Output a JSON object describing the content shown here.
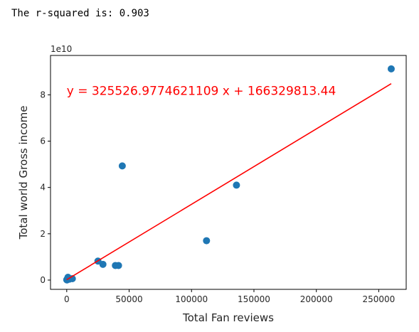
{
  "output": {
    "text": "The r-squared is: 0.903"
  },
  "chart_data": {
    "type": "scatter",
    "xlabel": "Total Fan reviews",
    "ylabel": "Total world Gross income",
    "y_offset_text": "1e10",
    "y_scale": 10000000000,
    "xlim": [
      -13000,
      272000
    ],
    "ylim": [
      -4000000000,
      97000000000
    ],
    "x_ticks": [
      0,
      50000,
      100000,
      150000,
      200000,
      250000
    ],
    "y_ticks": [
      0,
      2,
      4,
      6,
      8
    ],
    "grid": false,
    "points": [
      {
        "x": 0,
        "y": 150000000
      },
      {
        "x": 200,
        "y": 80000000
      },
      {
        "x": 500,
        "y": 500000000
      },
      {
        "x": 1000,
        "y": 1200000000
      },
      {
        "x": 2000,
        "y": 400000000
      },
      {
        "x": 4500,
        "y": 600000000
      },
      {
        "x": 25000,
        "y": 8200000000
      },
      {
        "x": 29000,
        "y": 6800000000
      },
      {
        "x": 39000,
        "y": 6300000000
      },
      {
        "x": 41500,
        "y": 6300000000
      },
      {
        "x": 44500,
        "y": 49300000000
      },
      {
        "x": 112000,
        "y": 17000000000
      },
      {
        "x": 136000,
        "y": 41000000000
      },
      {
        "x": 260000,
        "y": 91200000000
      }
    ],
    "regression": {
      "slope": 325526.9774621109,
      "intercept": 166329813.44,
      "x_from": 0,
      "x_to": 260000,
      "equation_text": "y = 325526.9774621109 x + 166329813.44",
      "equation_anchor_x": 0,
      "equation_anchor_y": 80000000000
    },
    "colors": {
      "points": "#1f77b4",
      "line": "#ff0000",
      "axes": "#000000"
    }
  }
}
